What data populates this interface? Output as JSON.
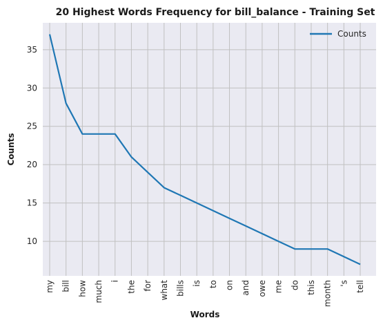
{
  "chart_data": {
    "type": "line",
    "title": "20 Highest Words Frequency for bill_balance - Training Set",
    "xlabel": "Words",
    "ylabel": "Counts",
    "categories": [
      "my",
      "bill",
      "how",
      "much",
      "i",
      "the",
      "for",
      "what",
      "bills",
      "is",
      "to",
      "on",
      "and",
      "owe",
      "me",
      "do",
      "this",
      "month",
      "'s",
      "tell"
    ],
    "series": [
      {
        "name": "Counts",
        "color": "#1f77b4",
        "values": [
          37,
          28,
          24,
          24,
          24,
          21,
          19,
          17,
          16,
          15,
          14,
          13,
          12,
          11,
          10,
          9,
          9,
          9,
          8,
          7
        ]
      }
    ],
    "ylim": [
      5.5,
      38.5
    ],
    "yticks": [
      10,
      15,
      20,
      25,
      30,
      35
    ],
    "grid": true,
    "legend_position": "top-right",
    "background": "#eaeaf2",
    "grid_color": "#c0c0c0"
  }
}
